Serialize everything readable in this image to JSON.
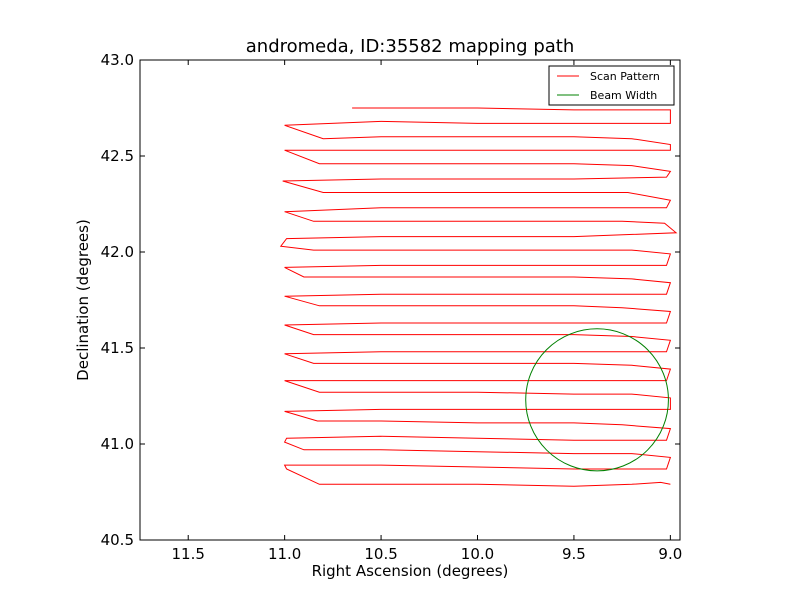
{
  "chart_data": {
    "type": "line",
    "title": "andromeda, ID:35582 mapping path",
    "xlabel": "Right Ascension (degrees)",
    "ylabel": "Declination (degrees)",
    "xlim": [
      11.75,
      8.95
    ],
    "ylim": [
      40.5,
      43.0
    ],
    "x_inverted": true,
    "grid": false,
    "legend_position": "upper-right",
    "x_ticks": [
      11.5,
      11.0,
      10.5,
      10.0,
      9.5,
      9.0
    ],
    "x_tick_labels": [
      "11.5",
      "11.0",
      "10.5",
      "10.0",
      "9.5",
      "9.0"
    ],
    "y_ticks": [
      40.5,
      41.0,
      41.5,
      42.0,
      42.5,
      43.0
    ],
    "y_tick_labels": [
      "40.5",
      "41.0",
      "41.5",
      "42.0",
      "42.5",
      "43.0"
    ],
    "series": [
      {
        "name": "Scan Pattern",
        "color": "#ff0000",
        "points": [
          [
            9.0,
            40.79
          ],
          [
            9.05,
            40.8
          ],
          [
            9.2,
            40.79
          ],
          [
            9.5,
            40.78
          ],
          [
            10.0,
            40.79
          ],
          [
            10.5,
            40.79
          ],
          [
            10.82,
            40.79
          ],
          [
            10.99,
            40.87
          ],
          [
            11.0,
            40.89
          ],
          [
            10.5,
            40.89
          ],
          [
            10.0,
            40.88
          ],
          [
            9.5,
            40.87
          ],
          [
            9.02,
            40.87
          ],
          [
            9.0,
            40.93
          ],
          [
            9.2,
            40.95
          ],
          [
            9.5,
            40.95
          ],
          [
            10.0,
            40.96
          ],
          [
            10.5,
            40.97
          ],
          [
            10.9,
            40.97
          ],
          [
            11.0,
            41.01
          ],
          [
            10.99,
            41.03
          ],
          [
            10.5,
            41.04
          ],
          [
            10.0,
            41.03
          ],
          [
            9.5,
            41.02
          ],
          [
            9.02,
            41.02
          ],
          [
            9.0,
            41.08
          ],
          [
            9.25,
            41.1
          ],
          [
            9.5,
            41.11
          ],
          [
            10.0,
            41.11
          ],
          [
            10.5,
            41.12
          ],
          [
            10.83,
            41.12
          ],
          [
            11.0,
            41.17
          ],
          [
            10.5,
            41.18
          ],
          [
            10.0,
            41.18
          ],
          [
            9.5,
            41.18
          ],
          [
            9.0,
            41.18
          ],
          [
            9.0,
            41.24
          ],
          [
            9.2,
            41.26
          ],
          [
            9.5,
            41.26
          ],
          [
            10.0,
            41.27
          ],
          [
            10.5,
            41.27
          ],
          [
            10.82,
            41.27
          ],
          [
            11.0,
            41.33
          ],
          [
            10.5,
            41.33
          ],
          [
            10.0,
            41.33
          ],
          [
            9.5,
            41.33
          ],
          [
            9.02,
            41.33
          ],
          [
            9.0,
            41.39
          ],
          [
            9.2,
            41.41
          ],
          [
            9.5,
            41.42
          ],
          [
            10.0,
            41.42
          ],
          [
            10.5,
            41.42
          ],
          [
            10.85,
            41.42
          ],
          [
            11.0,
            41.47
          ],
          [
            10.5,
            41.48
          ],
          [
            10.0,
            41.48
          ],
          [
            9.5,
            41.48
          ],
          [
            9.02,
            41.48
          ],
          [
            9.0,
            41.54
          ],
          [
            9.2,
            41.56
          ],
          [
            9.5,
            41.57
          ],
          [
            10.0,
            41.57
          ],
          [
            10.5,
            41.57
          ],
          [
            10.85,
            41.57
          ],
          [
            11.0,
            41.62
          ],
          [
            10.5,
            41.63
          ],
          [
            10.0,
            41.63
          ],
          [
            9.5,
            41.63
          ],
          [
            9.02,
            41.63
          ],
          [
            9.0,
            41.69
          ],
          [
            9.25,
            41.71
          ],
          [
            9.5,
            41.72
          ],
          [
            10.0,
            41.72
          ],
          [
            10.5,
            41.72
          ],
          [
            10.82,
            41.72
          ],
          [
            11.0,
            41.77
          ],
          [
            10.5,
            41.78
          ],
          [
            10.0,
            41.78
          ],
          [
            9.5,
            41.78
          ],
          [
            9.02,
            41.78
          ],
          [
            9.0,
            41.84
          ],
          [
            9.2,
            41.86
          ],
          [
            9.5,
            41.87
          ],
          [
            10.0,
            41.87
          ],
          [
            10.5,
            41.87
          ],
          [
            10.9,
            41.87
          ],
          [
            11.0,
            41.92
          ],
          [
            10.5,
            41.93
          ],
          [
            10.0,
            41.93
          ],
          [
            9.5,
            41.93
          ],
          [
            9.02,
            41.93
          ],
          [
            9.0,
            41.99
          ],
          [
            9.2,
            42.01
          ],
          [
            9.5,
            42.01
          ],
          [
            10.0,
            42.01
          ],
          [
            10.5,
            42.01
          ],
          [
            10.85,
            42.01
          ],
          [
            11.02,
            42.03
          ],
          [
            10.99,
            42.07
          ],
          [
            10.5,
            42.08
          ],
          [
            10.0,
            42.08
          ],
          [
            9.5,
            42.08
          ],
          [
            8.97,
            42.1
          ],
          [
            9.03,
            42.15
          ],
          [
            9.25,
            42.16
          ],
          [
            9.5,
            42.16
          ],
          [
            10.0,
            42.16
          ],
          [
            10.5,
            42.16
          ],
          [
            10.85,
            42.16
          ],
          [
            11.0,
            42.21
          ],
          [
            10.5,
            42.23
          ],
          [
            10.0,
            42.23
          ],
          [
            9.5,
            42.23
          ],
          [
            9.02,
            42.23
          ],
          [
            9.0,
            42.27
          ],
          [
            9.22,
            42.31
          ],
          [
            9.5,
            42.31
          ],
          [
            10.0,
            42.31
          ],
          [
            10.5,
            42.31
          ],
          [
            10.8,
            42.31
          ],
          [
            11.01,
            42.37
          ],
          [
            10.5,
            42.38
          ],
          [
            10.0,
            42.38
          ],
          [
            9.5,
            42.38
          ],
          [
            9.02,
            42.39
          ],
          [
            9.0,
            42.42
          ],
          [
            9.2,
            42.45
          ],
          [
            9.5,
            42.46
          ],
          [
            10.0,
            42.46
          ],
          [
            10.5,
            42.46
          ],
          [
            10.82,
            42.46
          ],
          [
            11.0,
            42.53
          ],
          [
            10.5,
            42.53
          ],
          [
            10.0,
            42.53
          ],
          [
            9.5,
            42.53
          ],
          [
            9.0,
            42.53
          ],
          [
            9.0,
            42.56
          ],
          [
            9.2,
            42.59
          ],
          [
            9.5,
            42.6
          ],
          [
            10.0,
            42.6
          ],
          [
            10.5,
            42.6
          ],
          [
            10.8,
            42.59
          ],
          [
            11.0,
            42.66
          ],
          [
            10.5,
            42.68
          ],
          [
            10.0,
            42.67
          ],
          [
            9.5,
            42.67
          ],
          [
            9.0,
            42.67
          ],
          [
            9.0,
            42.74
          ],
          [
            9.5,
            42.74
          ],
          [
            10.0,
            42.75
          ],
          [
            10.5,
            42.75
          ],
          [
            10.65,
            42.75
          ]
        ]
      },
      {
        "name": "Beam Width",
        "color": "#008000",
        "shape": "circle",
        "center": [
          9.38,
          41.23
        ],
        "radius_deg": 0.37
      }
    ]
  }
}
